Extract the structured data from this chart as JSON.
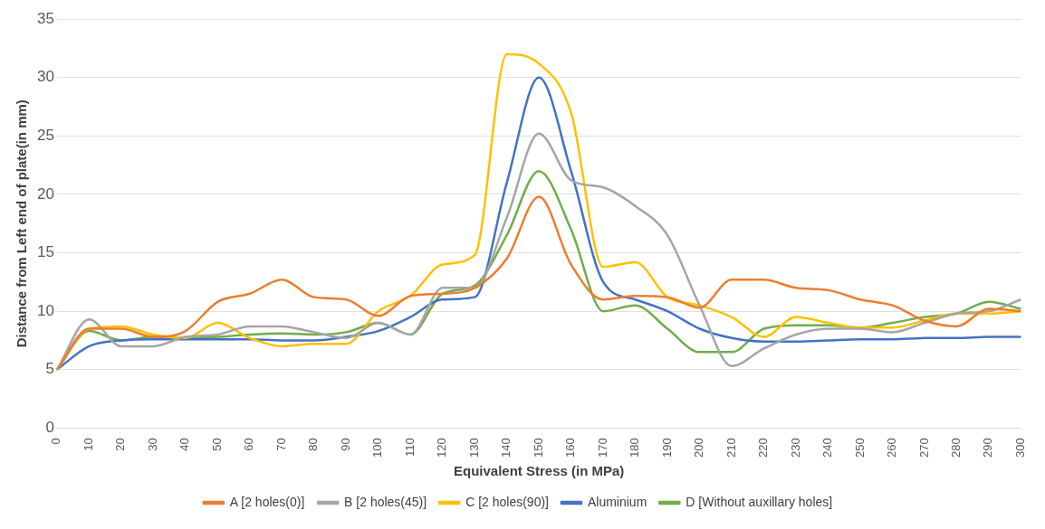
{
  "chart_data": {
    "type": "line",
    "xlabel": "Equivalent Stress (in MPa)",
    "ylabel": "Distance from Left end of plate(in mm)",
    "categories": [
      "0",
      "10",
      "20",
      "30",
      "40",
      "50",
      "60",
      "70",
      "80",
      "90",
      "100",
      "110",
      "120",
      "130",
      "140",
      "150",
      "160",
      "170",
      "180",
      "190",
      "200",
      "210",
      "220",
      "230",
      "240",
      "250",
      "260",
      "270",
      "280",
      "290",
      "300"
    ],
    "series": [
      {
        "name": "A [2 holes(0)]",
        "color": "#ed7d31",
        "values": [
          5,
          8.5,
          8.5,
          7.8,
          8.3,
          10.8,
          11.5,
          12.7,
          11.2,
          11,
          9.6,
          11.3,
          11.5,
          12,
          14.5,
          19.8,
          14,
          11,
          11.3,
          11.2,
          10.3,
          12.7,
          12.7,
          12,
          11.8,
          11,
          10.5,
          9.2,
          8.7,
          10.2,
          10
        ]
      },
      {
        "name": "B [2 holes(45)]",
        "color": "#a5a5a5",
        "values": [
          5,
          9.3,
          7,
          7,
          7.8,
          8,
          8.7,
          8.7,
          8.2,
          7.7,
          9,
          8,
          12,
          12,
          18,
          25.2,
          21.2,
          20.6,
          19,
          16.5,
          10.5,
          5.3,
          6.8,
          8,
          8.5,
          8.5,
          8.2,
          9,
          9.8,
          10,
          11
        ]
      },
      {
        "name": "C [2 holes(90)]",
        "color": "#ffc000",
        "values": [
          5,
          8.5,
          8.7,
          8,
          7.7,
          9,
          7.7,
          7,
          7.2,
          7.2,
          10,
          11.3,
          14,
          14.8,
          32,
          31.2,
          27,
          13.8,
          14.2,
          11.2,
          10.5,
          9.5,
          7.8,
          9.5,
          9,
          8.6,
          8.6,
          9.2,
          9.8,
          9.8,
          10
        ]
      },
      {
        "name": "Aluminium",
        "color": "#4472c4",
        "values": [
          5,
          7,
          7.5,
          7.6,
          7.6,
          7.6,
          7.6,
          7.5,
          7.5,
          7.8,
          8.3,
          9.5,
          11,
          11.2,
          21,
          30,
          22,
          12.5,
          11,
          10,
          8.5,
          7.7,
          7.4,
          7.4,
          7.5,
          7.6,
          7.6,
          7.7,
          7.7,
          7.8,
          7.8
        ]
      },
      {
        "name": "D [Without auxillary holes]",
        "color": "#70ad47",
        "values": [
          5,
          8.3,
          7.5,
          7.8,
          7.7,
          7.8,
          8,
          8.1,
          8,
          8.2,
          9,
          8,
          11.5,
          12.2,
          16.5,
          22,
          17,
          10,
          10.5,
          8.5,
          6.5,
          6.5,
          8.5,
          8.8,
          8.8,
          8.6,
          9,
          9.5,
          9.8,
          10.8,
          10.2
        ]
      }
    ],
    "ylim": [
      0,
      35
    ],
    "yticks": [
      0,
      5,
      10,
      15,
      20,
      25,
      30,
      35
    ],
    "grid": "y",
    "legend": "bottom",
    "marker": "none",
    "line_style": "solid"
  }
}
